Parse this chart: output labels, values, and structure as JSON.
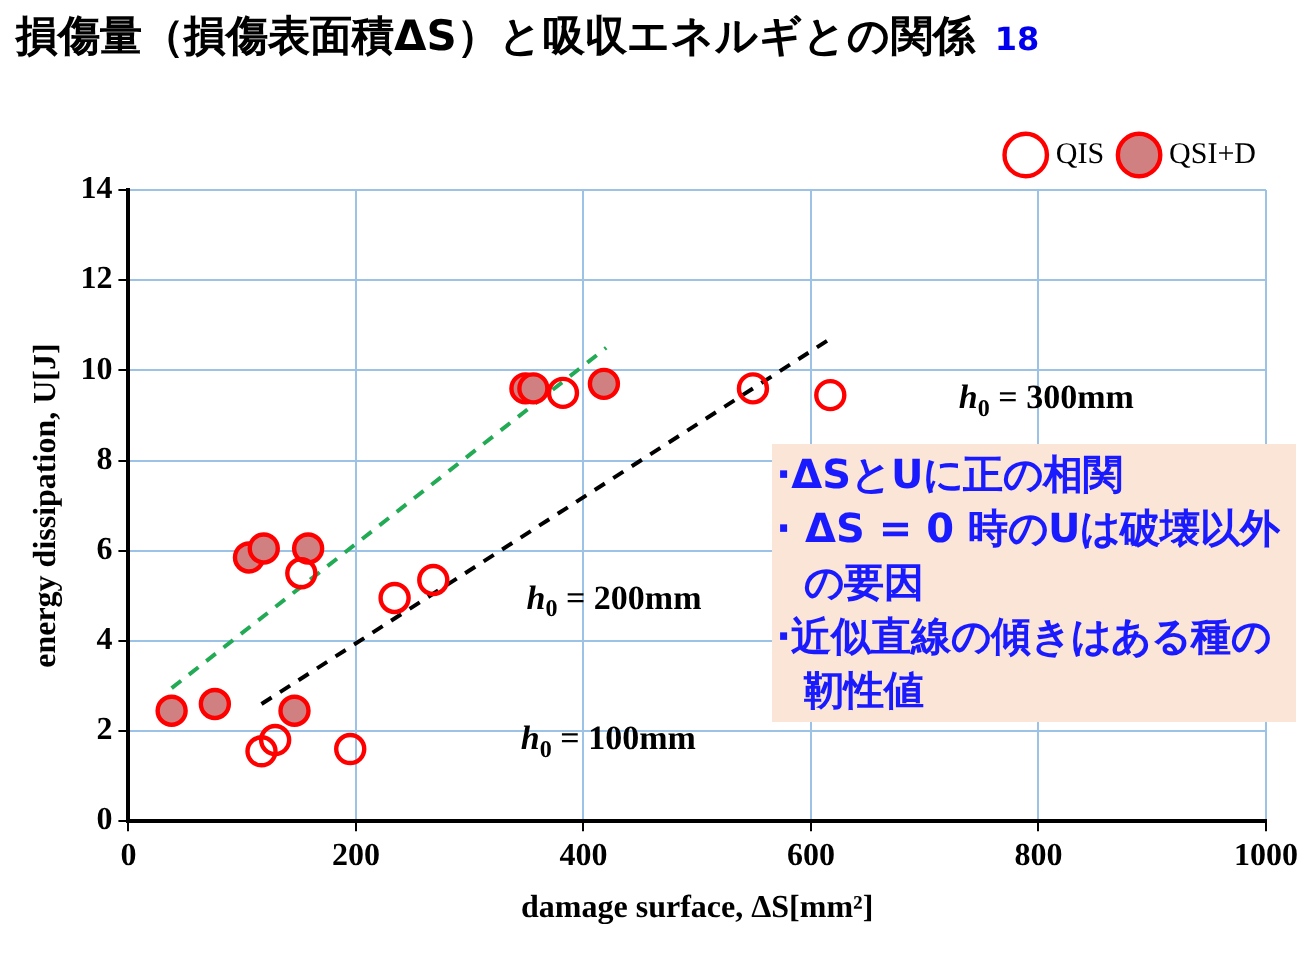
{
  "chart_data": {
    "type": "scatter",
    "title": "損傷量（損傷表面積ΔS）と吸収エネルギとの関係",
    "xlabel": "damage surface, ΔS[mm²]",
    "ylabel": "energy dissipation, U[J]",
    "xlim": [
      0,
      1000
    ],
    "xticks": [
      0,
      200,
      400,
      600,
      800,
      1000
    ],
    "ylim": [
      0,
      14
    ],
    "yticks": [
      0,
      2,
      4,
      6,
      8,
      10,
      12,
      14
    ],
    "grid": true,
    "legend": "top right",
    "marker": "circle",
    "series": [
      {
        "name": "QIS",
        "color": "#ff0000",
        "x": [
          117,
          129,
          195,
          152,
          234,
          268,
          382,
          549,
          617
        ],
        "values": [
          1.55,
          1.8,
          1.6,
          5.5,
          4.95,
          5.35,
          9.5,
          9.6,
          9.45
        ]
      },
      {
        "name": "QSI+D",
        "color": "#d08080",
        "x": [
          38,
          76,
          146,
          106,
          119,
          158,
          349,
          356,
          418
        ],
        "values": [
          2.45,
          2.6,
          2.45,
          5.85,
          6.05,
          6.05,
          9.6,
          9.6,
          9.7
        ]
      },
      {
        "type": "line",
        "color": "#22aa55",
        "line_style": "dashed",
        "marker": "none",
        "x": [
          38,
          420
        ],
        "values": [
          2.95,
          10.5
        ]
      },
      {
        "type": "line",
        "color": "#000000",
        "line_style": "dashed",
        "marker": "none",
        "x": [
          117,
          617
        ],
        "values": [
          2.6,
          10.7
        ]
      }
    ],
    "annotations": [
      "18",
      "·ΔSとUに正の相関",
      "· ΔS = 0 時のUは破壊以外の要因",
      "·近似直線の傾きはある種の靭性値",
      "h$_{0}$ = 100mm",
      "h$_{0}$ = 200mm",
      "h$_{0}$ = 300mm"
    ]
  }
}
